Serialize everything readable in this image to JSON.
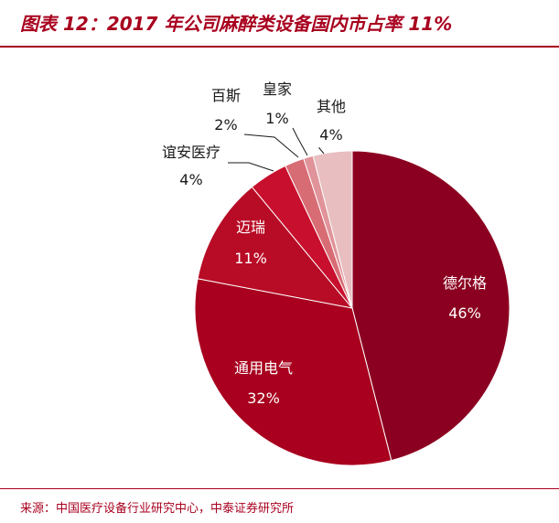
{
  "header": {
    "title": "图表 12：2017 年公司麻醉类设备国内市占率 11%"
  },
  "footer": {
    "source": "来源：中国医疗设备行业研究中心，中泰证券研究所"
  },
  "colors": {
    "accent": "#A8001E"
  },
  "chart_data": {
    "type": "pie",
    "title": "",
    "start_angle_deg": 0,
    "direction": "clockwise",
    "slices": [
      {
        "name": "德尔格",
        "value": 46,
        "label": "46%",
        "color": "#8B0020"
      },
      {
        "name": "通用电气",
        "value": 32,
        "label": "32%",
        "color": "#A8001E"
      },
      {
        "name": "迈瑞",
        "value": 11,
        "label": "11%",
        "color": "#B80B25"
      },
      {
        "name": "谊安医疗",
        "value": 4,
        "label": "4%",
        "color": "#C8102E"
      },
      {
        "name": "百斯",
        "value": 2,
        "label": "2%",
        "color": "#D86C74"
      },
      {
        "name": "皇家",
        "value": 1,
        "label": "1%",
        "color": "#E09399"
      },
      {
        "name": "其他",
        "value": 4,
        "label": "4%",
        "color": "#E8BEC1"
      }
    ]
  }
}
